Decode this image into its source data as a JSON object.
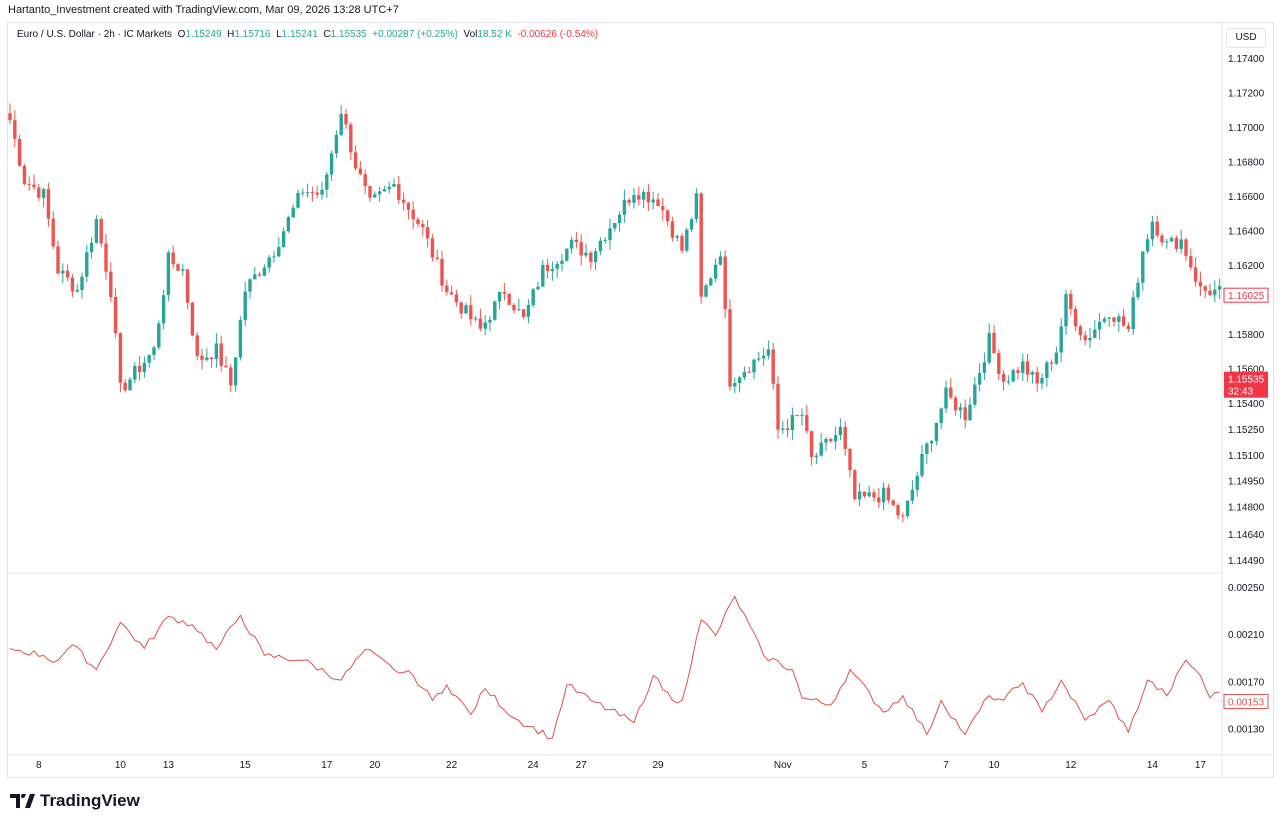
{
  "header": {
    "attribution": "Hartanto_Investment created with TradingView.com, Mar 09, 2026 13:28 UTC+7"
  },
  "legend": {
    "symbol": "Euro / U.S. Dollar · 2h · IC Markets",
    "open_label": "O",
    "open": "1.15249",
    "high_label": "H",
    "high": "1.15716",
    "low_label": "L",
    "low": "1.15241",
    "close_label": "C",
    "close": "1.15535",
    "change": "+0.00287 (+0.25%)",
    "vol_label": "Vol",
    "vol": "18.52 K",
    "indicator_value": "-0.00626 (-0.54%)"
  },
  "currency": "USD",
  "logo": {
    "text": "TradingView"
  },
  "colors": {
    "up": "#26a69a",
    "down": "#ef5350",
    "indicator": "#d9534f",
    "last_price": "#f23645"
  },
  "chart_data": [
    {
      "type": "candlestick",
      "title": "Euro / U.S. Dollar · 2h · IC Markets",
      "ylim": [
        1.1449,
        1.1752
      ],
      "yticks": [
        "1.17400",
        "1.17200",
        "1.17000",
        "1.16800",
        "1.16600",
        "1.16400",
        "1.16200",
        "1.15800",
        "1.15600",
        "1.15400",
        "1.15250",
        "1.15100",
        "1.14950",
        "1.14800",
        "1.14640",
        "1.14490"
      ],
      "close_path_bar_price": [
        [
          0,
          1.17041
        ],
        [
          3,
          1.16693
        ],
        [
          7,
          1.16606
        ],
        [
          10,
          1.16171
        ],
        [
          14,
          1.16055
        ],
        [
          18,
          1.16461
        ],
        [
          21,
          1.16055
        ],
        [
          23,
          1.15475
        ],
        [
          30,
          1.15707
        ],
        [
          33,
          1.16229
        ],
        [
          36,
          1.16171
        ],
        [
          39,
          1.15649
        ],
        [
          43,
          1.15707
        ],
        [
          46,
          1.15504
        ],
        [
          49,
          1.16055
        ],
        [
          55,
          1.16287
        ],
        [
          61,
          1.16635
        ],
        [
          65,
          1.16606
        ],
        [
          69,
          1.17099
        ],
        [
          72,
          1.1678
        ],
        [
          75,
          1.16548
        ],
        [
          80,
          1.16664
        ],
        [
          86,
          1.16403
        ],
        [
          91,
          1.16055
        ],
        [
          98,
          1.15823
        ],
        [
          103,
          1.16055
        ],
        [
          107,
          1.15881
        ],
        [
          111,
          1.16171
        ],
        [
          117,
          1.16316
        ],
        [
          121,
          1.16258
        ],
        [
          130,
          1.16635
        ],
        [
          135,
          1.16577
        ],
        [
          140,
          1.16287
        ],
        [
          143,
          1.16577
        ],
        [
          144,
          1.15997
        ],
        [
          148,
          1.16287
        ],
        [
          150,
          1.15533
        ],
        [
          158,
          1.15707
        ],
        [
          160,
          1.15243
        ],
        [
          165,
          1.1533
        ],
        [
          167,
          1.1507
        ],
        [
          173,
          1.15243
        ],
        [
          176,
          1.14838
        ],
        [
          182,
          1.14867
        ],
        [
          186,
          1.14722
        ],
        [
          190,
          1.1507
        ],
        [
          195,
          1.15446
        ],
        [
          199,
          1.1533
        ],
        [
          204,
          1.15765
        ],
        [
          207,
          1.15533
        ],
        [
          211,
          1.1562
        ],
        [
          214,
          1.15504
        ],
        [
          218,
          1.15707
        ],
        [
          220,
          1.15997
        ],
        [
          224,
          1.15765
        ],
        [
          229,
          1.15939
        ],
        [
          233,
          1.15823
        ],
        [
          236,
          1.16287
        ],
        [
          238,
          1.16461
        ],
        [
          241,
          1.16316
        ],
        [
          244,
          1.16345
        ],
        [
          248,
          1.16055
        ],
        [
          252,
          1.16043
        ]
      ],
      "price_labels": {
        "level_1": "1.16025",
        "last": "1.15535",
        "countdown": "32:43"
      }
    },
    {
      "type": "line",
      "ylim": [
        0.00112,
        0.00254
      ],
      "yticks": [
        "0.00250",
        "0.00210",
        "0.00170",
        "0.00130"
      ],
      "points_bar_value": [
        [
          0,
          0.00198
        ],
        [
          7,
          0.00192
        ],
        [
          9,
          0.00186
        ],
        [
          13,
          0.00201
        ],
        [
          18,
          0.0018
        ],
        [
          23,
          0.0022
        ],
        [
          28,
          0.00198
        ],
        [
          33,
          0.00225
        ],
        [
          38,
          0.00218
        ],
        [
          43,
          0.00197
        ],
        [
          48,
          0.00226
        ],
        [
          53,
          0.00192
        ],
        [
          61,
          0.00188
        ],
        [
          69,
          0.00171
        ],
        [
          74,
          0.00197
        ],
        [
          80,
          0.0018
        ],
        [
          84,
          0.00175
        ],
        [
          88,
          0.00154
        ],
        [
          91,
          0.00167
        ],
        [
          96,
          0.00142
        ],
        [
          99,
          0.00164
        ],
        [
          105,
          0.00139
        ],
        [
          113,
          0.00122
        ],
        [
          116,
          0.00167
        ],
        [
          121,
          0.00154
        ],
        [
          130,
          0.00135
        ],
        [
          134,
          0.00175
        ],
        [
          138,
          0.00154
        ],
        [
          140,
          0.00154
        ],
        [
          144,
          0.00222
        ],
        [
          147,
          0.00209
        ],
        [
          151,
          0.00242
        ],
        [
          157,
          0.00192
        ],
        [
          163,
          0.0018
        ],
        [
          165,
          0.00156
        ],
        [
          171,
          0.0015
        ],
        [
          175,
          0.0018
        ],
        [
          182,
          0.00144
        ],
        [
          186,
          0.00158
        ],
        [
          191,
          0.00125
        ],
        [
          194,
          0.00154
        ],
        [
          199,
          0.00125
        ],
        [
          204,
          0.00158
        ],
        [
          207,
          0.00154
        ],
        [
          211,
          0.00169
        ],
        [
          215,
          0.00144
        ],
        [
          219,
          0.00171
        ],
        [
          224,
          0.00137
        ],
        [
          229,
          0.00154
        ],
        [
          233,
          0.00127
        ],
        [
          237,
          0.00171
        ],
        [
          241,
          0.00158
        ],
        [
          245,
          0.00188
        ],
        [
          248,
          0.00175
        ],
        [
          250,
          0.00156
        ],
        [
          252,
          0.00161
        ]
      ],
      "last_label": "0.00153"
    },
    {
      "type": "x-axis",
      "labels": [
        [
          6,
          "8"
        ],
        [
          23,
          "10"
        ],
        [
          33,
          "13"
        ],
        [
          49,
          "15"
        ],
        [
          66,
          "17"
        ],
        [
          76,
          "20"
        ],
        [
          92,
          "22"
        ],
        [
          109,
          "24"
        ],
        [
          119,
          "27"
        ],
        [
          135,
          "29"
        ],
        [
          161,
          "Nov"
        ],
        [
          178,
          "5"
        ],
        [
          195,
          "7"
        ],
        [
          205,
          "10"
        ],
        [
          221,
          "12"
        ],
        [
          238,
          "14"
        ],
        [
          248,
          "17"
        ]
      ]
    }
  ]
}
